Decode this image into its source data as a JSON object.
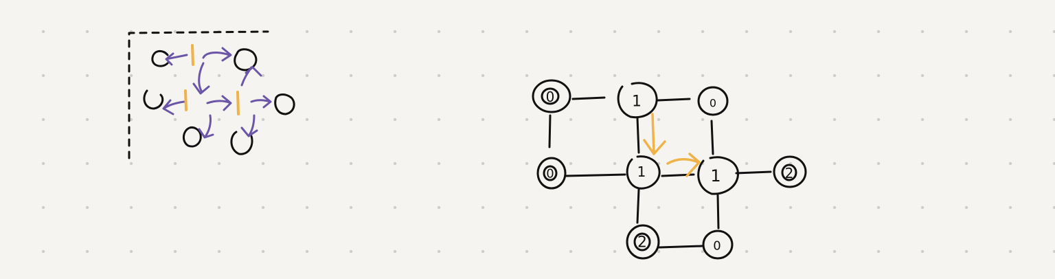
{
  "canvas": {
    "background": "#f5f4f0",
    "dot_color": "#cfcdc7",
    "ink_color": "#111111",
    "purple_color": "#6b55a6",
    "orange_color": "#efb34a"
  },
  "left_sketch": {
    "nodes": [
      {
        "id": "a1",
        "label": ""
      },
      {
        "id": "a2",
        "label": ""
      },
      {
        "id": "a3",
        "label": ""
      },
      {
        "id": "a4",
        "label": ""
      },
      {
        "id": "a5",
        "label": ""
      },
      {
        "id": "a6",
        "label": ""
      }
    ],
    "marks": [
      {
        "id": "m1",
        "label": "|"
      },
      {
        "id": "m2",
        "label": "|"
      },
      {
        "id": "m3",
        "label": "|"
      }
    ]
  },
  "right_graph": {
    "nodes": [
      {
        "id": "r00",
        "label": "0"
      },
      {
        "id": "r01",
        "label": "1"
      },
      {
        "id": "r02",
        "label": "0"
      },
      {
        "id": "r10",
        "label": "0"
      },
      {
        "id": "r11",
        "label": "1"
      },
      {
        "id": "r12",
        "label": "1"
      },
      {
        "id": "r13",
        "label": "2"
      },
      {
        "id": "r21",
        "label": "2"
      },
      {
        "id": "r22",
        "label": "0"
      }
    ]
  }
}
